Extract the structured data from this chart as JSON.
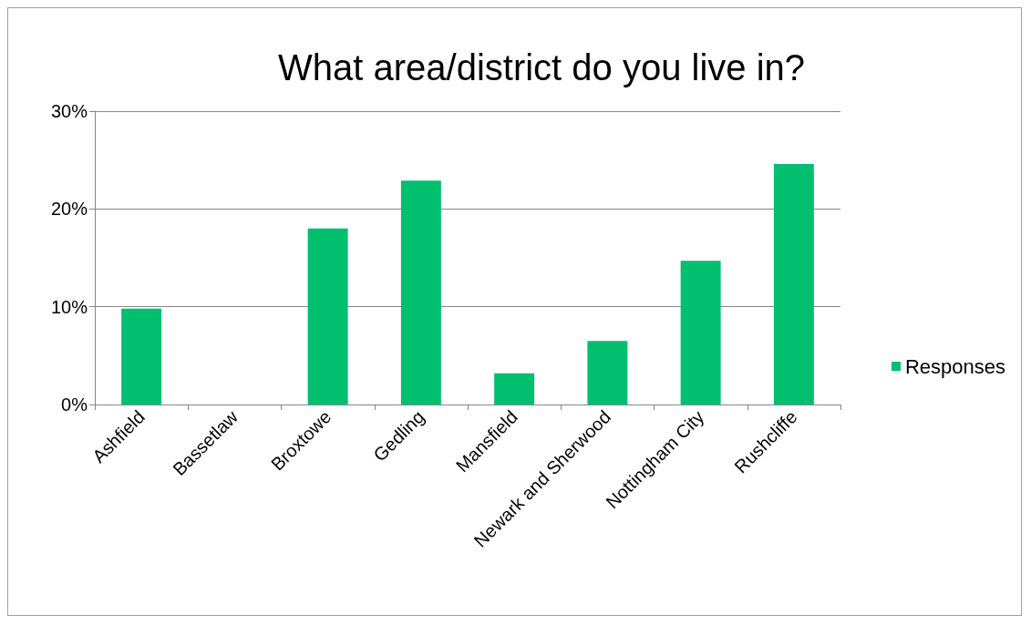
{
  "chart_data": {
    "type": "bar",
    "title": "What area/district do you live in?",
    "categories": [
      "Ashfield",
      "Bassetlaw",
      "Broxtowe",
      "Gedling",
      "Mansfield",
      "Newark and Sherwood",
      "Nottingham City",
      "Rushcliffe"
    ],
    "series": [
      {
        "name": "Responses",
        "color": "#00bf6f",
        "values": [
          9.8,
          0,
          18.0,
          22.9,
          3.2,
          6.5,
          14.7,
          24.6
        ]
      }
    ],
    "ylim": [
      0,
      30
    ],
    "yticks": [
      {
        "value": 0,
        "label": "0%"
      },
      {
        "value": 10,
        "label": "10%"
      },
      {
        "value": 20,
        "label": "20%"
      },
      {
        "value": 30,
        "label": "30%"
      }
    ],
    "grid": "y",
    "legend": "right"
  }
}
